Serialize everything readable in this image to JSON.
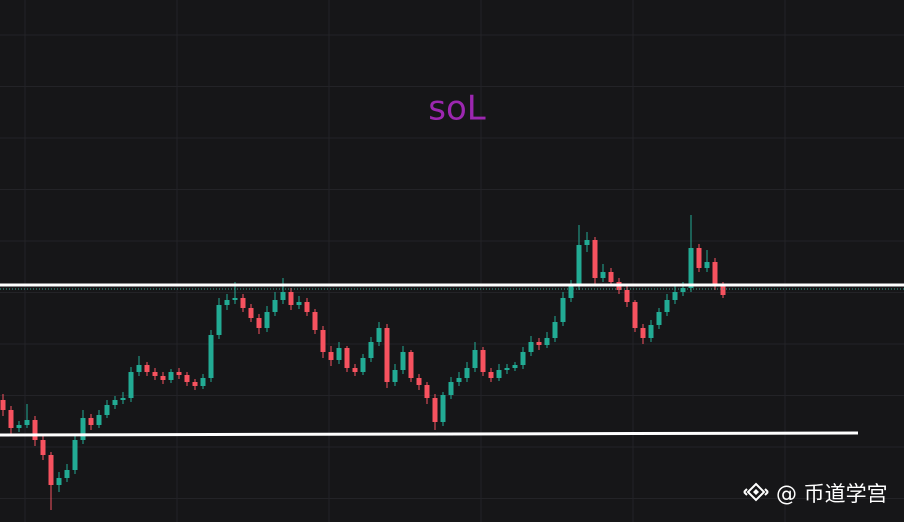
{
  "chart_data": {
    "type": "candlestick",
    "title": "soL",
    "watermark": "@ 币道学宫",
    "up_color": "#22ab94",
    "down_color": "#f7525f",
    "ylim": [
      0,
      522
    ],
    "grid": true,
    "resistance": 237,
    "support": [
      87,
      89
    ],
    "price_line": 233,
    "open": [
      122,
      112,
      94,
      97,
      102,
      82,
      67,
      37,
      44,
      52,
      82,
      104,
      97,
      107,
      117,
      122,
      124,
      150,
      157,
      150,
      146,
      142,
      150,
      147,
      140,
      136,
      144,
      187,
      217,
      222,
      224,
      214,
      204,
      194,
      210,
      222,
      230,
      217,
      220,
      210,
      192,
      170,
      162,
      174,
      154,
      150,
      164,
      180,
      194,
      140,
      152,
      170,
      144,
      137,
      124,
      100,
      127,
      140,
      144,
      154,
      172,
      150,
      144,
      152,
      154,
      157,
      170,
      180,
      177,
      184,
      200,
      224,
      237,
      277,
      282,
      244,
      250,
      240,
      232,
      220,
      194,
      184,
      197,
      210,
      222,
      230,
      234,
      274,
      254,
      260,
      237
    ],
    "high": [
      128,
      116,
      101,
      118,
      106,
      86,
      70,
      50,
      58,
      88,
      112,
      108,
      112,
      122,
      126,
      130,
      155,
      166,
      160,
      154,
      150,
      153,
      154,
      150,
      143,
      148,
      192,
      224,
      228,
      240,
      228,
      218,
      208,
      216,
      230,
      244,
      234,
      226,
      224,
      213,
      196,
      176,
      180,
      176,
      158,
      168,
      185,
      200,
      198,
      158,
      176,
      172,
      148,
      140,
      128,
      130,
      145,
      150,
      160,
      180,
      175,
      154,
      158,
      158,
      160,
      175,
      186,
      184,
      190,
      206,
      230,
      242,
      297,
      290,
      285,
      258,
      254,
      244,
      236,
      222,
      198,
      202,
      214,
      228,
      236,
      240,
      307,
      278,
      272,
      264,
      240
    ],
    "low": [
      106,
      88,
      90,
      94,
      76,
      62,
      12,
      30,
      40,
      48,
      78,
      92,
      94,
      104,
      113,
      118,
      120,
      146,
      146,
      142,
      138,
      139,
      143,
      136,
      132,
      133,
      140,
      183,
      212,
      218,
      210,
      200,
      188,
      190,
      206,
      218,
      212,
      213,
      206,
      188,
      164,
      156,
      158,
      150,
      146,
      147,
      160,
      176,
      134,
      136,
      148,
      140,
      132,
      118,
      92,
      96,
      123,
      136,
      140,
      150,
      146,
      140,
      141,
      148,
      151,
      153,
      166,
      172,
      174,
      180,
      196,
      220,
      232,
      270,
      238,
      240,
      236,
      228,
      215,
      190,
      178,
      180,
      193,
      206,
      218,
      226,
      230,
      250,
      250,
      232,
      224
    ],
    "close": [
      112,
      94,
      97,
      102,
      82,
      67,
      37,
      44,
      52,
      82,
      104,
      97,
      107,
      117,
      122,
      124,
      150,
      157,
      150,
      146,
      142,
      150,
      147,
      140,
      136,
      144,
      187,
      217,
      222,
      224,
      214,
      204,
      194,
      210,
      222,
      230,
      217,
      220,
      210,
      192,
      170,
      162,
      174,
      154,
      150,
      164,
      180,
      194,
      140,
      152,
      170,
      144,
      137,
      124,
      100,
      127,
      140,
      144,
      154,
      172,
      150,
      144,
      152,
      154,
      157,
      170,
      180,
      177,
      184,
      200,
      224,
      237,
      277,
      282,
      244,
      250,
      240,
      232,
      220,
      194,
      184,
      197,
      210,
      222,
      230,
      234,
      274,
      254,
      260,
      237,
      227
    ]
  }
}
